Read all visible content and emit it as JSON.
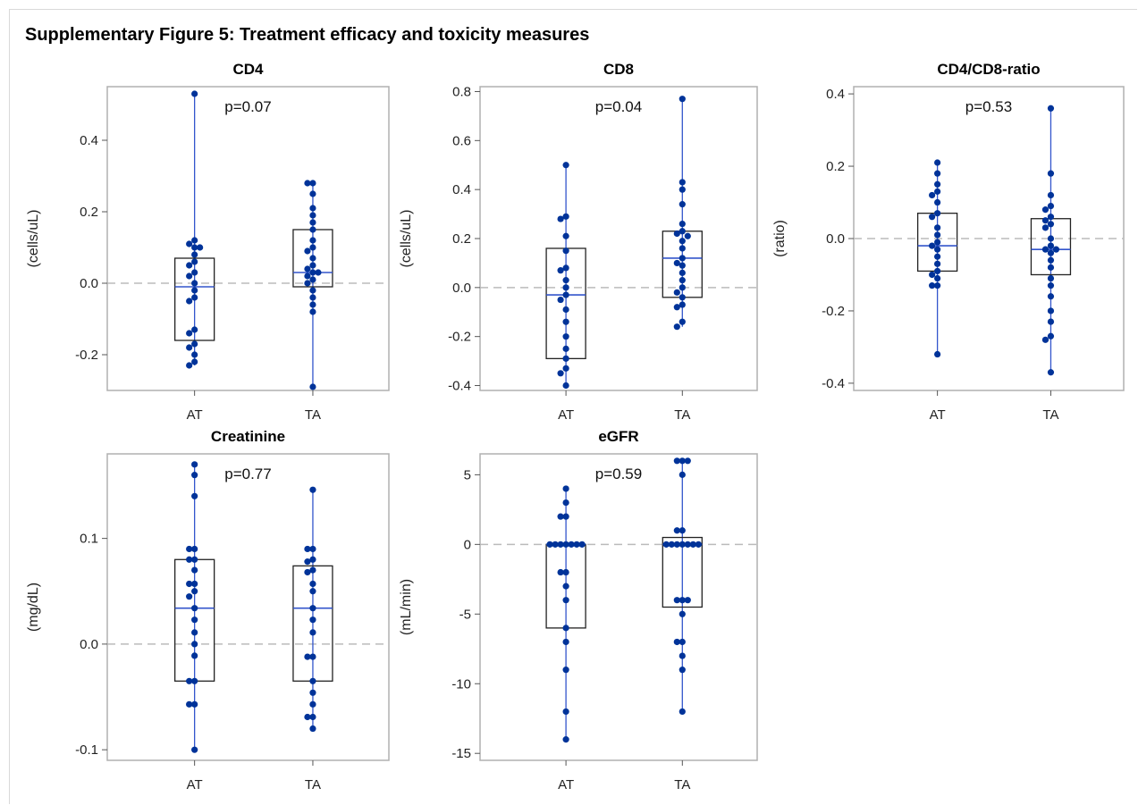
{
  "figure_title": "Supplementary Figure 5: Treatment efficacy and toxicity measures",
  "colors": {
    "marker": "#003399",
    "median": "#3355cc",
    "box": "#222222",
    "frame": "#b0b0b0",
    "zero_line": "#bbbbbb"
  },
  "chart_data": [
    {
      "type": "box",
      "title": "CD4",
      "ylabel": "(cells/uL)",
      "p_value": "p=0.07",
      "ylim": [
        -0.3,
        0.55
      ],
      "yticks": [
        0.4,
        0.2,
        0.0,
        -0.2
      ],
      "ytick_labels": [
        "0.4",
        "0.2",
        "0.0",
        "-0.2"
      ],
      "categories": [
        "AT",
        "TA"
      ],
      "reference_line": 0,
      "groups": [
        {
          "name": "AT",
          "q1": -0.16,
          "median": -0.01,
          "q3": 0.07,
          "points": [
            0.53,
            0.12,
            0.11,
            0.1,
            0.1,
            0.08,
            0.06,
            0.05,
            0.03,
            0.02,
            0.0,
            -0.02,
            -0.04,
            -0.05,
            -0.13,
            -0.14,
            -0.17,
            -0.18,
            -0.2,
            -0.22,
            -0.23
          ]
        },
        {
          "name": "TA",
          "q1": -0.01,
          "median": 0.03,
          "q3": 0.15,
          "points": [
            0.28,
            0.28,
            0.25,
            0.21,
            0.19,
            0.17,
            0.15,
            0.12,
            0.1,
            0.09,
            0.07,
            0.05,
            0.04,
            0.03,
            0.03,
            0.02,
            0.01,
            0.0,
            -0.02,
            -0.04,
            -0.06,
            -0.08,
            -0.29
          ]
        }
      ]
    },
    {
      "type": "box",
      "title": "CD8",
      "ylabel": "(cells/uL)",
      "p_value": "p=0.04",
      "ylim": [
        -0.42,
        0.82
      ],
      "yticks": [
        0.8,
        0.6,
        0.4,
        0.2,
        0.0,
        -0.2,
        -0.4
      ],
      "ytick_labels": [
        "0.8",
        "0.6",
        "0.4",
        "0.2",
        "0.0",
        "-0.2",
        "-0.4"
      ],
      "categories": [
        "AT",
        "TA"
      ],
      "reference_line": 0,
      "groups": [
        {
          "name": "AT",
          "q1": -0.29,
          "median": -0.03,
          "q3": 0.16,
          "points": [
            0.5,
            0.29,
            0.28,
            0.21,
            0.15,
            0.08,
            0.07,
            0.03,
            0.0,
            -0.03,
            -0.05,
            -0.09,
            -0.14,
            -0.2,
            -0.25,
            -0.29,
            -0.33,
            -0.35,
            -0.4
          ]
        },
        {
          "name": "TA",
          "q1": -0.04,
          "median": 0.12,
          "q3": 0.23,
          "points": [
            0.77,
            0.43,
            0.4,
            0.34,
            0.26,
            0.23,
            0.22,
            0.21,
            0.19,
            0.16,
            0.12,
            0.1,
            0.09,
            0.06,
            0.03,
            0.0,
            -0.02,
            -0.04,
            -0.07,
            -0.08,
            -0.14,
            -0.16
          ]
        }
      ]
    },
    {
      "type": "box",
      "title": "CD4/CD8-ratio",
      "ylabel": "(ratio)",
      "p_value": "p=0.53",
      "ylim": [
        -0.42,
        0.42
      ],
      "yticks": [
        0.4,
        0.2,
        0.0,
        -0.2,
        -0.4
      ],
      "ytick_labels": [
        "0.4",
        "0.2",
        "0.0",
        "-0.2",
        "-0.4"
      ],
      "categories": [
        "AT",
        "TA"
      ],
      "reference_line": 0,
      "groups": [
        {
          "name": "AT",
          "q1": -0.09,
          "median": -0.02,
          "q3": 0.07,
          "points": [
            0.21,
            0.18,
            0.15,
            0.13,
            0.12,
            0.1,
            0.07,
            0.06,
            0.03,
            0.01,
            -0.01,
            -0.02,
            -0.03,
            -0.05,
            -0.07,
            -0.09,
            -0.1,
            -0.11,
            -0.13,
            -0.13,
            -0.32
          ]
        },
        {
          "name": "TA",
          "q1": -0.1,
          "median": -0.03,
          "q3": 0.055,
          "points": [
            0.36,
            0.18,
            0.12,
            0.09,
            0.08,
            0.06,
            0.05,
            0.04,
            0.03,
            0.0,
            -0.02,
            -0.03,
            -0.03,
            -0.04,
            -0.06,
            -0.08,
            -0.11,
            -0.13,
            -0.16,
            -0.2,
            -0.23,
            -0.27,
            -0.28,
            -0.37
          ]
        }
      ]
    },
    {
      "type": "box",
      "title": "Creatinine",
      "ylabel": "(mg/dL)",
      "p_value": "p=0.77",
      "ylim": [
        -0.11,
        0.18
      ],
      "yticks": [
        0.1,
        0.0,
        -0.1
      ],
      "ytick_labels": [
        "0.1",
        "0.0",
        "-0.1"
      ],
      "categories": [
        "AT",
        "TA"
      ],
      "reference_line": 0,
      "groups": [
        {
          "name": "AT",
          "q1": -0.035,
          "median": 0.034,
          "q3": 0.08,
          "points": [
            0.17,
            0.16,
            0.14,
            0.09,
            0.09,
            0.08,
            0.08,
            0.07,
            0.057,
            0.057,
            0.05,
            0.045,
            0.034,
            0.023,
            0.011,
            0.0,
            -0.011,
            -0.035,
            -0.035,
            -0.057,
            -0.057,
            -0.1
          ]
        },
        {
          "name": "TA",
          "q1": -0.035,
          "median": 0.034,
          "q3": 0.074,
          "points": [
            0.146,
            0.09,
            0.09,
            0.08,
            0.078,
            0.07,
            0.068,
            0.057,
            0.05,
            0.034,
            0.023,
            0.011,
            -0.012,
            -0.012,
            -0.035,
            -0.046,
            -0.057,
            -0.069,
            -0.069,
            -0.08
          ]
        }
      ]
    },
    {
      "type": "box",
      "title": "eGFR",
      "ylabel": "(mL/min)",
      "p_value": "p=0.59",
      "ylim": [
        -15.5,
        6.5
      ],
      "yticks": [
        5,
        0,
        -5,
        -10,
        -15
      ],
      "ytick_labels": [
        "5",
        "0",
        "-5",
        "-10",
        "-15"
      ],
      "categories": [
        "AT",
        "TA"
      ],
      "reference_line": 0,
      "groups": [
        {
          "name": "AT",
          "q1": -6,
          "median": 0,
          "q3": 0,
          "points": [
            4,
            3,
            2,
            2,
            0,
            0,
            0,
            0,
            0,
            0,
            0,
            -2,
            -2,
            -3,
            -4,
            -6,
            -7,
            -9,
            -12,
            -14
          ]
        },
        {
          "name": "TA",
          "q1": -4.5,
          "median": 0,
          "q3": 0.5,
          "points": [
            6,
            6,
            6,
            5,
            1,
            1,
            0,
            0,
            0,
            0,
            0,
            0,
            0,
            -4,
            -4,
            -4,
            -5,
            -7,
            -7,
            -8,
            -9,
            -12
          ]
        }
      ]
    }
  ]
}
